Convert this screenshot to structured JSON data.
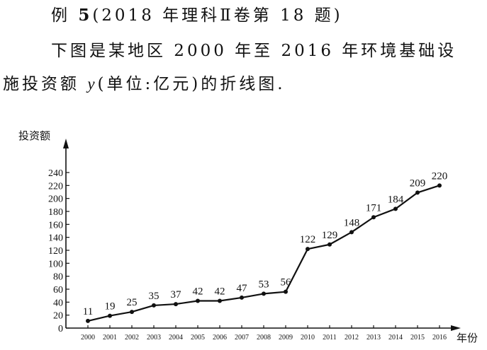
{
  "text": {
    "ex_label": "例",
    "ex_num": "5",
    "ex_source": "(2018 年理科Ⅱ卷第 18 题)",
    "line2": "下图是某地区 2000 年至 2016 年环境基础设",
    "line3_a": "施投资额",
    "line3_var": "y",
    "line3_b": "(单位:亿元)的折线图."
  },
  "chart_data": {
    "type": "line",
    "ylabel": "投资额",
    "xlabel": "年份",
    "ylim": [
      0,
      240
    ],
    "yticks": [
      0,
      20,
      40,
      60,
      80,
      100,
      120,
      140,
      160,
      180,
      200,
      220,
      240
    ],
    "grid": false,
    "categories": [
      "2000",
      "2001",
      "2002",
      "2003",
      "2004",
      "2005",
      "2006",
      "2007",
      "2008",
      "2009",
      "2010",
      "2011",
      "2012",
      "2013",
      "2014",
      "2015",
      "2016"
    ],
    "series": [
      {
        "values": [
          11,
          19,
          25,
          35,
          37,
          42,
          42,
          47,
          53,
          56,
          122,
          129,
          148,
          171,
          184,
          209,
          220
        ]
      }
    ]
  }
}
